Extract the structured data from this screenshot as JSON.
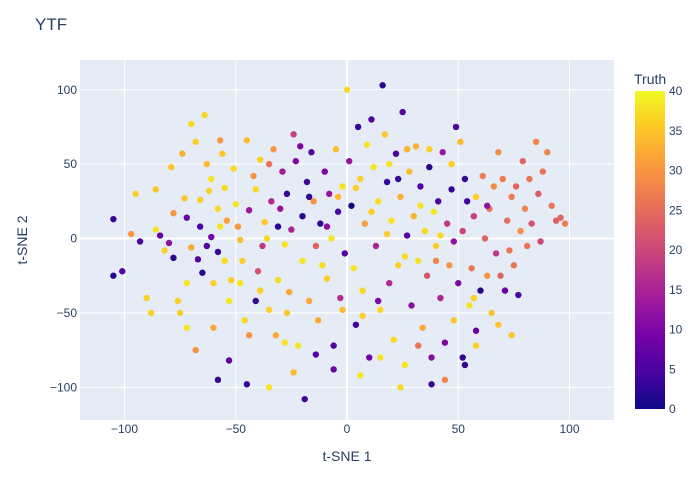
{
  "chart_data": {
    "type": "scatter",
    "title": "YTF",
    "xlabel": "t-SNE 1",
    "ylabel": "t-SNE 2",
    "xlim": [
      -120,
      120
    ],
    "ylim": [
      -122,
      120
    ],
    "xticks": [
      -100,
      -50,
      0,
      50,
      100
    ],
    "yticks": [
      -100,
      -50,
      0,
      50,
      100
    ],
    "tick_labels_x": [
      "−100",
      "−50",
      "0",
      "50",
      "100"
    ],
    "tick_labels_y": [
      "−100",
      "−50",
      "0",
      "50",
      "100"
    ],
    "grid": true,
    "colorbar": {
      "title": "Truth",
      "range": [
        0,
        40
      ],
      "ticks": [
        0,
        5,
        10,
        15,
        20,
        25,
        30,
        35,
        40
      ],
      "tick_labels": [
        "0",
        "5",
        "10",
        "15",
        "20",
        "25",
        "30",
        "35",
        "40"
      ],
      "colorscale": "plasma"
    },
    "points": [
      [
        -105,
        13,
        3
      ],
      [
        -105,
        -25,
        2
      ],
      [
        -101,
        -22,
        6
      ],
      [
        -97,
        3,
        30
      ],
      [
        -95,
        30,
        36
      ],
      [
        -93,
        -2,
        5
      ],
      [
        -90,
        -40,
        36
      ],
      [
        -88,
        -50,
        36
      ],
      [
        -86,
        33,
        35
      ],
      [
        -86,
        6,
        38
      ],
      [
        -84,
        2,
        8
      ],
      [
        -82,
        -8,
        36
      ],
      [
        -80,
        -3,
        12
      ],
      [
        -79,
        48,
        35
      ],
      [
        -78,
        17,
        30
      ],
      [
        -78,
        -13,
        2
      ],
      [
        -76,
        -42,
        36
      ],
      [
        -75,
        -50,
        36
      ],
      [
        -74,
        57,
        33
      ],
      [
        -73,
        27,
        35
      ],
      [
        -72,
        14,
        8
      ],
      [
        -72,
        -30,
        38
      ],
      [
        -70,
        -6,
        32
      ],
      [
        -70,
        77,
        37
      ],
      [
        -68,
        65,
        36
      ],
      [
        -67,
        -14,
        6
      ],
      [
        -66,
        8,
        5
      ],
      [
        -65,
        -23,
        2
      ],
      [
        -64,
        83,
        37
      ],
      [
        -63,
        50,
        34
      ],
      [
        -61,
        40,
        38
      ],
      [
        -61,
        1,
        9
      ],
      [
        -60,
        -30,
        36
      ],
      [
        -60,
        -60,
        32
      ],
      [
        -58,
        20,
        37
      ],
      [
        -58,
        -9,
        3
      ],
      [
        -57,
        66,
        30
      ],
      [
        -56,
        57,
        35
      ],
      [
        -55,
        34,
        37
      ],
      [
        -54,
        12,
        31
      ],
      [
        -53,
        -82,
        7
      ],
      [
        -53,
        -42,
        38
      ],
      [
        -51,
        47,
        37
      ],
      [
        -50,
        23,
        38
      ],
      [
        -48,
        -1,
        34
      ],
      [
        -47,
        -15,
        36
      ],
      [
        -46,
        -55,
        37
      ],
      [
        -45,
        66,
        34
      ],
      [
        -44,
        19,
        13
      ],
      [
        -42,
        42,
        30
      ],
      [
        -41,
        -42,
        3
      ],
      [
        -40,
        -22,
        22
      ],
      [
        -39,
        53,
        36
      ],
      [
        -37,
        11,
        35
      ],
      [
        -36,
        0,
        37
      ],
      [
        -35,
        -48,
        36
      ],
      [
        -34,
        25,
        16
      ],
      [
        -33,
        60,
        30
      ],
      [
        -32,
        -65,
        32
      ],
      [
        -30,
        20,
        13
      ],
      [
        -29,
        45,
        14
      ],
      [
        -28,
        -4,
        38
      ],
      [
        -27,
        30,
        3
      ],
      [
        -26,
        -36,
        32
      ],
      [
        -25,
        6,
        15
      ],
      [
        -24,
        70,
        19
      ],
      [
        -23,
        52,
        10
      ],
      [
        -22,
        -72,
        38
      ],
      [
        -20,
        15,
        2
      ],
      [
        -20,
        -15,
        38
      ],
      [
        -19,
        -108,
        4
      ],
      [
        -18,
        38,
        4
      ],
      [
        -16,
        58,
        6
      ],
      [
        -15,
        25,
        30
      ],
      [
        -14,
        -5,
        24
      ],
      [
        -13,
        -55,
        32
      ],
      [
        -12,
        10,
        3
      ],
      [
        -10,
        45,
        10
      ],
      [
        -9,
        -27,
        36
      ],
      [
        -8,
        30,
        13
      ],
      [
        -7,
        0,
        38
      ],
      [
        -6,
        -72,
        6
      ],
      [
        -5,
        60,
        34
      ],
      [
        -4,
        18,
        5
      ],
      [
        -3,
        -40,
        16
      ],
      [
        -2,
        35,
        38
      ],
      [
        -1,
        -10,
        6
      ],
      [
        0,
        100,
        37
      ],
      [
        1,
        52,
        13
      ],
      [
        2,
        22,
        0
      ],
      [
        3,
        -20,
        38
      ],
      [
        4,
        -58,
        4
      ],
      [
        5,
        75,
        3
      ],
      [
        6,
        40,
        36
      ],
      [
        7,
        -35,
        37
      ],
      [
        8,
        10,
        31
      ],
      [
        9,
        63,
        38
      ],
      [
        10,
        -80,
        9
      ],
      [
        11,
        80,
        6
      ],
      [
        12,
        48,
        38
      ],
      [
        13,
        -5,
        15
      ],
      [
        14,
        25,
        37
      ],
      [
        15,
        -48,
        37
      ],
      [
        16,
        103,
        2
      ],
      [
        17,
        70,
        35
      ],
      [
        18,
        38,
        3
      ],
      [
        19,
        -30,
        16
      ],
      [
        20,
        12,
        38
      ],
      [
        21,
        -68,
        37
      ],
      [
        22,
        57,
        5
      ],
      [
        23,
        -18,
        36
      ],
      [
        24,
        28,
        33
      ],
      [
        25,
        85,
        6
      ],
      [
        26,
        -85,
        38
      ],
      [
        27,
        2,
        6
      ],
      [
        28,
        45,
        34
      ],
      [
        29,
        -45,
        12
      ],
      [
        30,
        15,
        33
      ],
      [
        31,
        62,
        33
      ],
      [
        32,
        -15,
        38
      ],
      [
        33,
        35,
        6
      ],
      [
        34,
        -60,
        32
      ],
      [
        35,
        5,
        37
      ],
      [
        36,
        -25,
        22
      ],
      [
        37,
        48,
        2
      ],
      [
        38,
        -80,
        11
      ],
      [
        39,
        18,
        38
      ],
      [
        40,
        -5,
        36
      ],
      [
        41,
        25,
        5
      ],
      [
        42,
        -40,
        15
      ],
      [
        43,
        58,
        13
      ],
      [
        44,
        -70,
        10
      ],
      [
        45,
        10,
        18
      ],
      [
        46,
        -18,
        30
      ],
      [
        47,
        33,
        3
      ],
      [
        48,
        -55,
        35
      ],
      [
        49,
        75,
        5
      ],
      [
        50,
        -30,
        10
      ],
      [
        51,
        65,
        34
      ],
      [
        52,
        5,
        20
      ],
      [
        53,
        -85,
        3
      ],
      [
        54,
        25,
        4
      ],
      [
        55,
        -45,
        38
      ],
      [
        56,
        -20,
        26
      ],
      [
        57,
        15,
        19
      ],
      [
        58,
        -62,
        8
      ],
      [
        60,
        -35,
        2
      ],
      [
        61,
        42,
        27
      ],
      [
        62,
        0,
        24
      ],
      [
        63,
        -25,
        30
      ],
      [
        64,
        20,
        26
      ],
      [
        65,
        -50,
        35
      ],
      [
        66,
        35,
        29
      ],
      [
        67,
        -10,
        18
      ],
      [
        68,
        58,
        29
      ],
      [
        69,
        -25,
        24
      ],
      [
        70,
        40,
        27
      ],
      [
        71,
        -35,
        8
      ],
      [
        72,
        12,
        25
      ],
      [
        73,
        -8,
        26
      ],
      [
        74,
        28,
        27
      ],
      [
        75,
        -18,
        26
      ],
      [
        76,
        35,
        24
      ],
      [
        77,
        -38,
        5
      ],
      [
        78,
        5,
        29
      ],
      [
        79,
        52,
        24
      ],
      [
        80,
        20,
        28
      ],
      [
        81,
        -5,
        26
      ],
      [
        82,
        40,
        26
      ],
      [
        83,
        10,
        22
      ],
      [
        85,
        65,
        28
      ],
      [
        86,
        30,
        23
      ],
      [
        87,
        -2,
        20
      ],
      [
        88,
        45,
        26
      ],
      [
        90,
        58,
        28
      ],
      [
        92,
        22,
        26
      ],
      [
        94,
        12,
        23
      ],
      [
        96,
        14,
        24
      ],
      [
        98,
        10,
        27
      ],
      [
        -52,
        -28,
        36
      ],
      [
        -44,
        -65,
        30
      ],
      [
        -38,
        -5,
        18
      ],
      [
        -31,
        -28,
        37
      ],
      [
        -27,
        -50,
        35
      ],
      [
        -17,
        -42,
        32
      ],
      [
        -11,
        -18,
        37
      ],
      [
        -2,
        -48,
        34
      ],
      [
        7,
        -52,
        36
      ],
      [
        14,
        -42,
        10
      ],
      [
        18,
        3,
        36
      ],
      [
        26,
        -12,
        37
      ],
      [
        32,
        -72,
        26
      ],
      [
        40,
        -15,
        28
      ],
      [
        48,
        -2,
        12
      ],
      [
        57,
        -40,
        36
      ],
      [
        -66,
        26,
        36
      ],
      [
        -63,
        -5,
        5
      ],
      [
        -57,
        8,
        38
      ],
      [
        -49,
        8,
        30
      ],
      [
        -41,
        33,
        37
      ],
      [
        -35,
        50,
        26
      ],
      [
        -31,
        8,
        2
      ],
      [
        -21,
        62,
        10
      ],
      [
        -17,
        28,
        2
      ],
      [
        -9,
        8,
        12
      ],
      [
        -4,
        28,
        34
      ],
      [
        4,
        34,
        36
      ],
      [
        11,
        18,
        36
      ],
      [
        19,
        50,
        38
      ],
      [
        23,
        40,
        3
      ],
      [
        27,
        60,
        33
      ],
      [
        33,
        22,
        38
      ],
      [
        37,
        60,
        36
      ],
      [
        42,
        2,
        37
      ],
      [
        47,
        50,
        36
      ],
      [
        53,
        40,
        3
      ],
      [
        58,
        28,
        36
      ],
      [
        63,
        22,
        12
      ],
      [
        -62,
        32,
        36
      ],
      [
        -55,
        -15,
        37
      ],
      [
        -48,
        -30,
        38
      ],
      [
        -39,
        -35,
        36
      ],
      [
        -28,
        -70,
        38
      ],
      [
        -24,
        -90,
        34
      ],
      [
        -14,
        -78,
        6
      ],
      [
        -6,
        -88,
        8
      ],
      [
        6,
        -92,
        38
      ],
      [
        15,
        -80,
        38
      ],
      [
        24,
        -100,
        37
      ],
      [
        38,
        -98,
        3
      ],
      [
        44,
        -95,
        28
      ],
      [
        52,
        -80,
        3
      ],
      [
        58,
        -72,
        36
      ],
      [
        68,
        -58,
        35
      ],
      [
        74,
        -65,
        35
      ],
      [
        -72,
        -60,
        38
      ],
      [
        -68,
        -75,
        30
      ],
      [
        -58,
        -95,
        3
      ],
      [
        -45,
        -98,
        3
      ],
      [
        -35,
        -100,
        38
      ]
    ]
  }
}
